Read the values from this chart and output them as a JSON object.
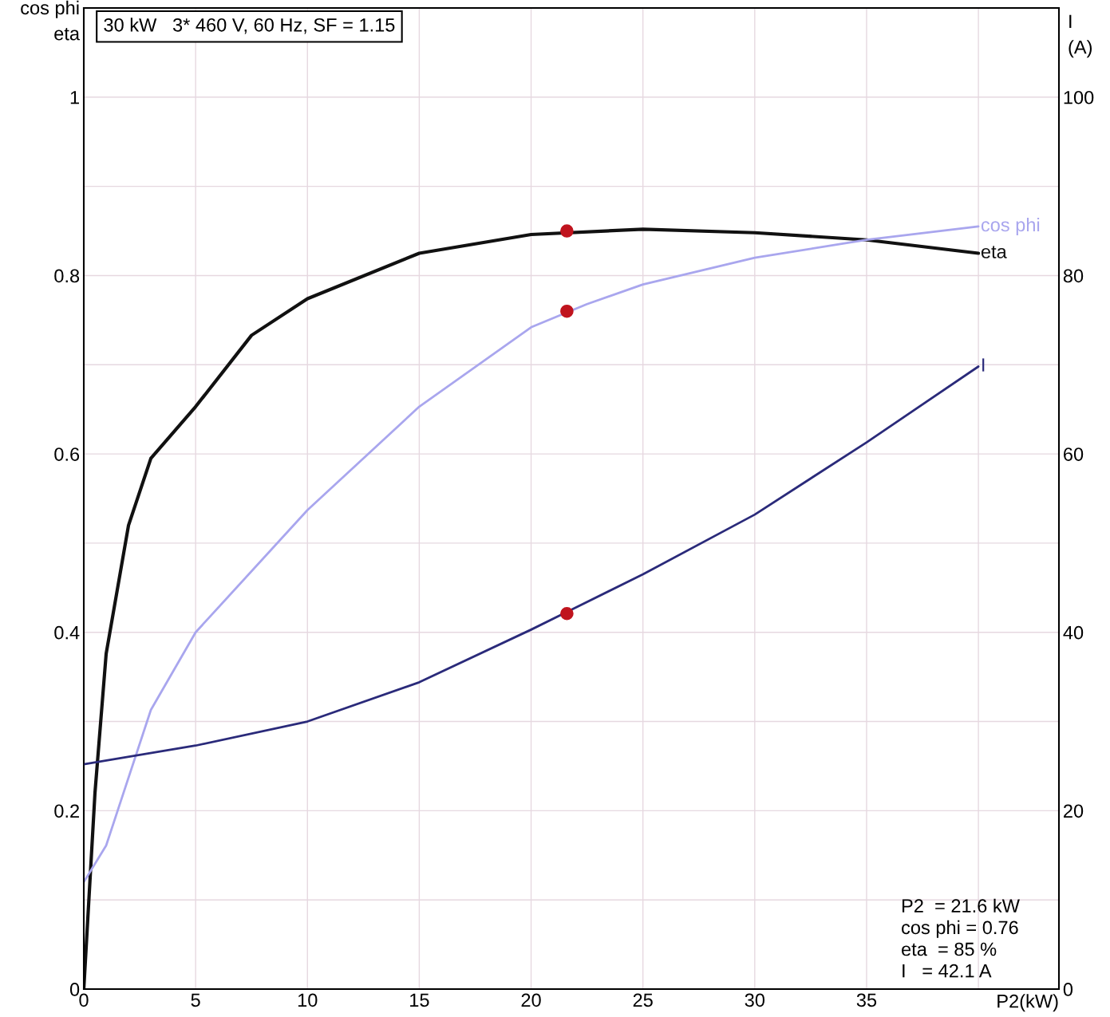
{
  "chart_data": {
    "type": "line",
    "title": "30 kW   3* 460 V, 60 Hz, SF = 1.15",
    "xlabel": "P2(kW)",
    "ylabel": "cos phi\neta",
    "y2label": "I\n(A)",
    "xlim": [
      0,
      43.6
    ],
    "xticks": [
      0,
      5,
      10,
      15,
      20,
      25,
      30,
      35,
      {
        "value": 40,
        "label": null
      }
    ],
    "ylim": [
      0,
      1.1
    ],
    "yticks": [
      0,
      {
        "value": 0.1,
        "label": null
      },
      0.2,
      {
        "value": 0.3,
        "label": null
      },
      0.4,
      {
        "value": 0.5,
        "label": null
      },
      0.6,
      {
        "value": 0.7,
        "label": null
      },
      0.8,
      {
        "value": 0.9,
        "label": null
      },
      1
    ],
    "y2lim": [
      0,
      110
    ],
    "y2ticks": [
      0,
      20,
      40,
      60,
      80,
      100
    ],
    "grid": true,
    "legend": false,
    "marker": "none",
    "line_style": "solid",
    "series": [
      {
        "name": "eta",
        "color": "#111111",
        "x": [
          0,
          0.5,
          1,
          2,
          3,
          5,
          7.5,
          10,
          15,
          20,
          25,
          30,
          35,
          40
        ],
        "values": [
          0,
          0.22,
          0.376,
          0.52,
          0.595,
          0.653,
          0.733,
          0.774,
          0.825,
          0.846,
          0.852,
          0.848,
          0.84,
          0.825
        ]
      },
      {
        "name": "cos phi",
        "color": "#a9a6ee",
        "x": [
          0,
          1,
          3,
          5,
          10,
          15,
          20,
          22.5,
          25,
          30,
          35,
          40
        ],
        "values": [
          0.12,
          0.161,
          0.313,
          0.4,
          0.537,
          0.653,
          0.742,
          0.768,
          0.79,
          0.82,
          0.84,
          0.855
        ]
      },
      {
        "name": "I",
        "color": "#2a2a7a",
        "axis": "y2",
        "x": [
          0,
          5,
          10,
          15,
          20,
          25,
          30,
          35,
          40
        ],
        "values": [
          25.2,
          27.3,
          30,
          34.4,
          40.3,
          46.5,
          53.2,
          61.3,
          69.8
        ]
      },
      {
        "type": "scatter",
        "marker": "circle",
        "color": "#c0141e",
        "x": [
          21.6,
          21.6
        ],
        "values": [
          0.85,
          0.76
        ]
      },
      {
        "type": "scatter",
        "marker": "circle",
        "color": "#c0141e",
        "axis": "y2",
        "x": [
          21.6
        ],
        "values": [
          42.1
        ]
      }
    ],
    "annotations": [
      "P2  = 21.6 kW\ncos phi = 0.76\neta  = 85 %\nI   = 42.1 A"
    ]
  }
}
